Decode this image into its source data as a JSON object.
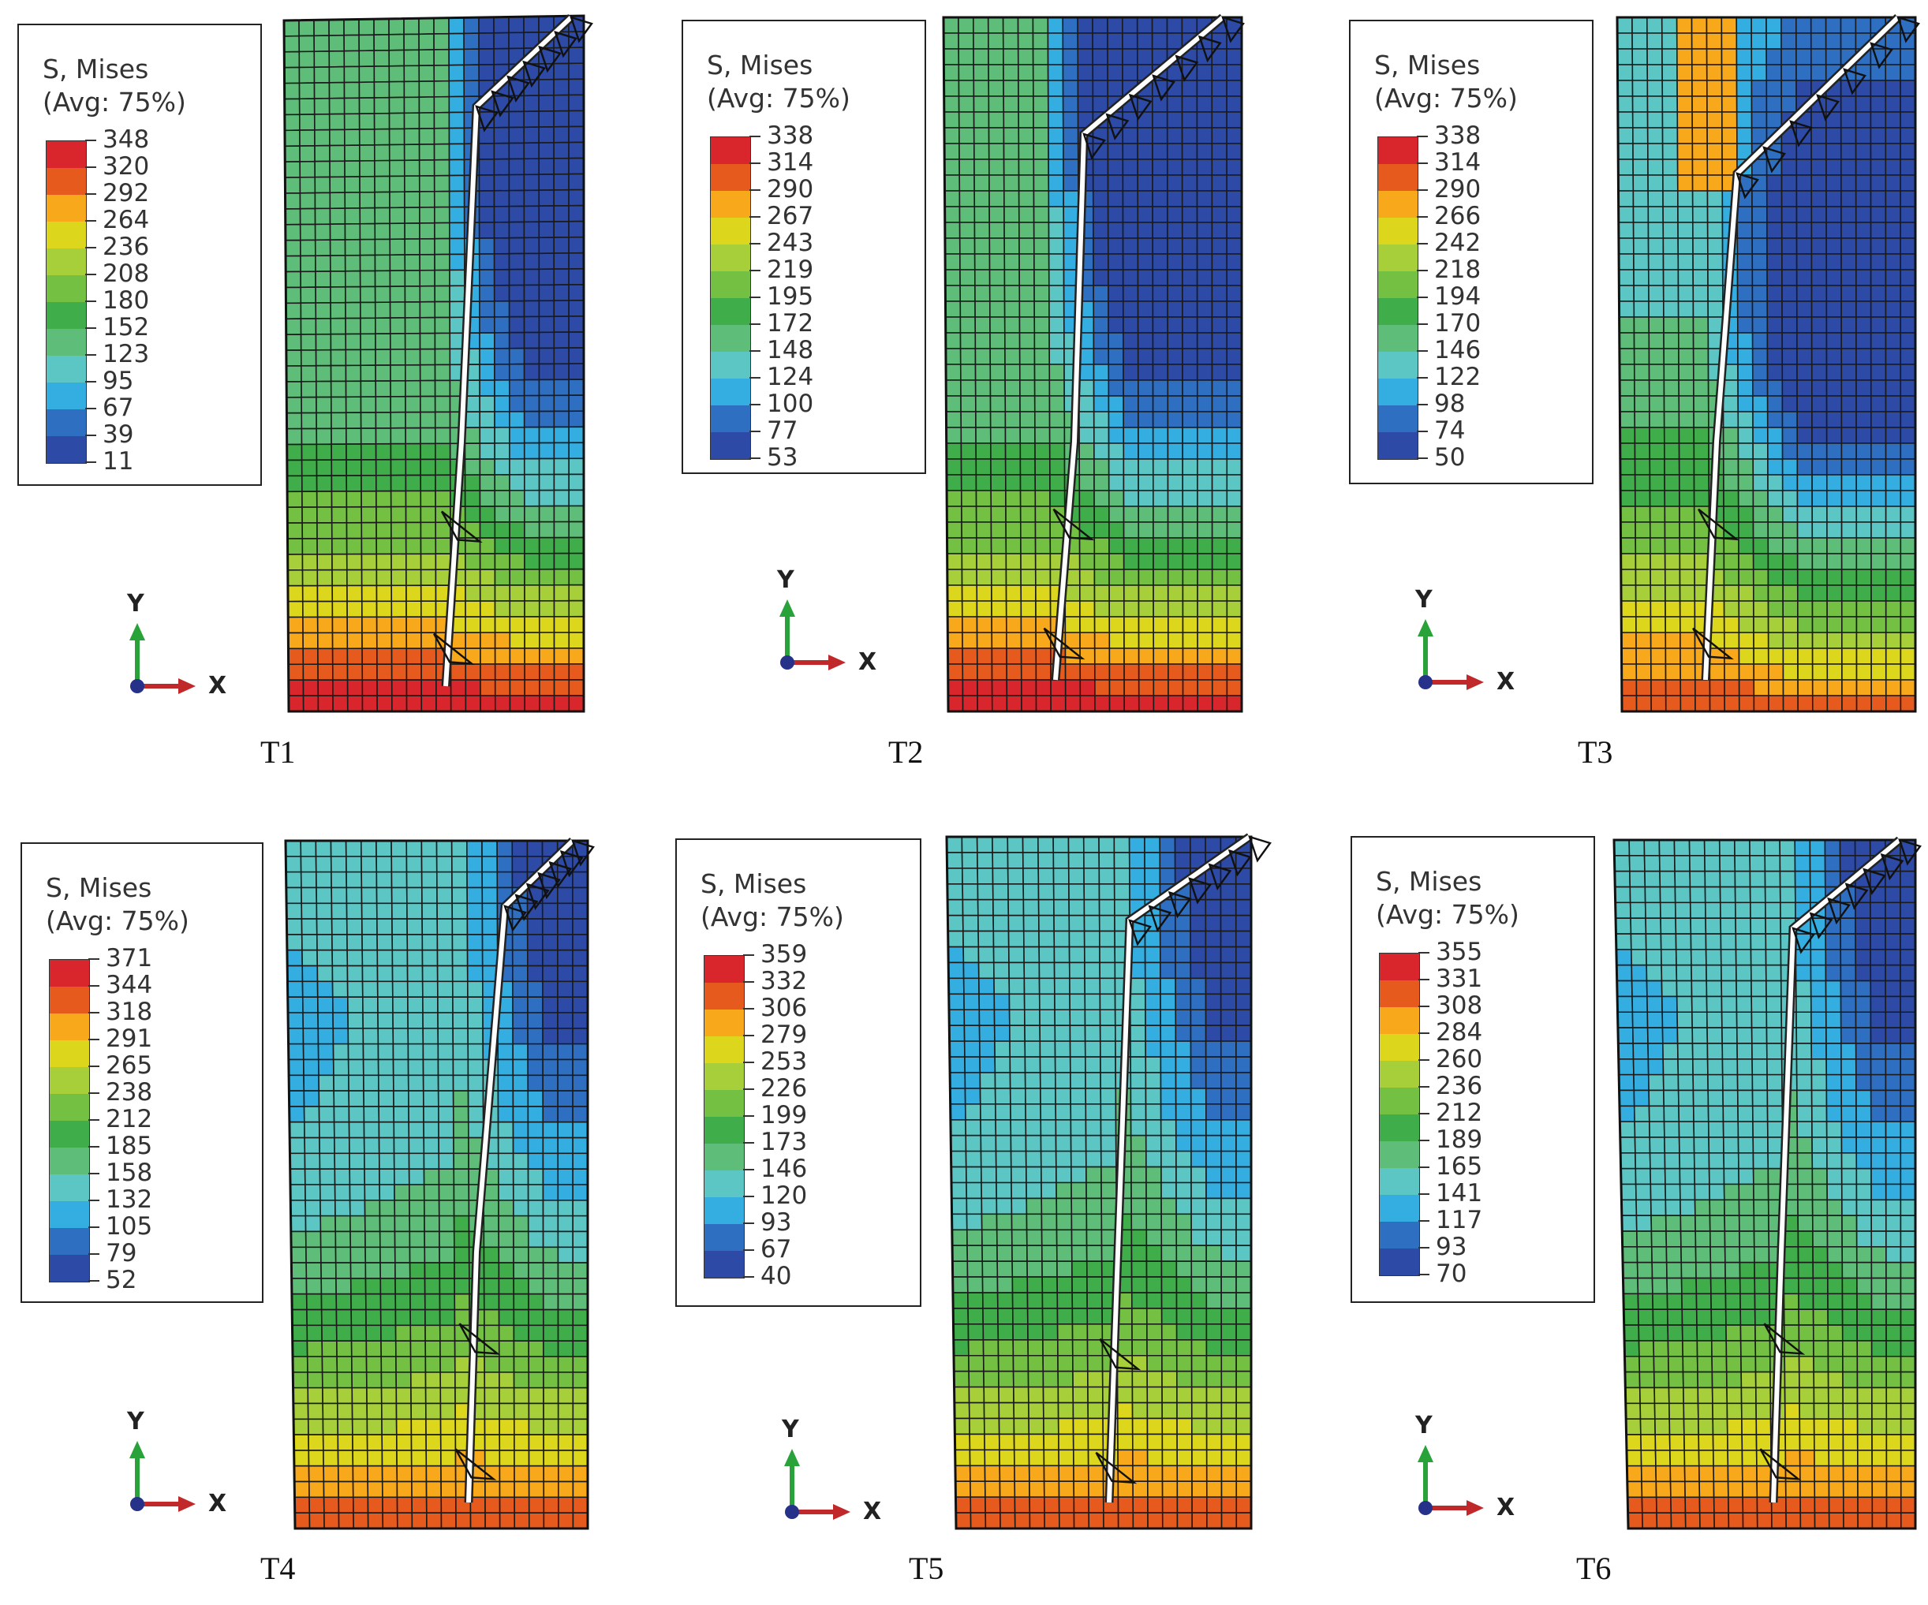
{
  "colors": {
    "bands": [
      "#d8262c",
      "#e65a1e",
      "#f7a81b",
      "#dcd61c",
      "#a6cf3a",
      "#74c043",
      "#3fad49",
      "#5fbd7a",
      "#5cc6c4",
      "#34aee0",
      "#2f6fc2",
      "#2c4aa6"
    ],
    "legend_band_order": "top-to-bottom, highest stress first"
  },
  "panels": [
    {
      "label": "T1",
      "legend_title": "S, Mises",
      "legend_subtitle": "(Avg: 75%)",
      "values": [
        "348",
        "320",
        "292",
        "264",
        "236",
        "208",
        "180",
        "152",
        "123",
        "95",
        "67",
        "39",
        "11"
      ],
      "axis": {
        "y": "Y",
        "x": "X"
      }
    },
    {
      "label": "T2",
      "legend_title": "S, Mises",
      "legend_subtitle": "(Avg: 75%)",
      "values": [
        "338",
        "314",
        "290",
        "267",
        "243",
        "219",
        "195",
        "172",
        "148",
        "124",
        "100",
        "77",
        "53"
      ],
      "axis": {
        "y": "Y",
        "x": "X"
      }
    },
    {
      "label": "T3",
      "legend_title": "S, Mises",
      "legend_subtitle": "(Avg: 75%)",
      "values": [
        "338",
        "314",
        "290",
        "266",
        "242",
        "218",
        "194",
        "170",
        "146",
        "122",
        "98",
        "74",
        "50"
      ],
      "axis": {
        "y": "Y",
        "x": "X"
      }
    },
    {
      "label": "T4",
      "legend_title": "S, Mises",
      "legend_subtitle": "(Avg: 75%)",
      "values": [
        "371",
        "344",
        "318",
        "291",
        "265",
        "238",
        "212",
        "185",
        "158",
        "132",
        "105",
        "79",
        "52"
      ],
      "axis": {
        "y": "Y",
        "x": "X"
      }
    },
    {
      "label": "T5",
      "legend_title": "S, Mises",
      "legend_subtitle": "(Avg: 75%)",
      "values": [
        "359",
        "332",
        "306",
        "279",
        "253",
        "226",
        "199",
        "173",
        "146",
        "120",
        "93",
        "67",
        "40"
      ],
      "axis": {
        "y": "Y",
        "x": "X"
      }
    },
    {
      "label": "T6",
      "legend_title": "S, Mises",
      "legend_subtitle": "(Avg: 75%)",
      "values": [
        "355",
        "331",
        "308",
        "284",
        "260",
        "236",
        "212",
        "189",
        "165",
        "141",
        "117",
        "93",
        "70"
      ],
      "axis": {
        "y": "Y",
        "x": "X"
      }
    }
  ]
}
